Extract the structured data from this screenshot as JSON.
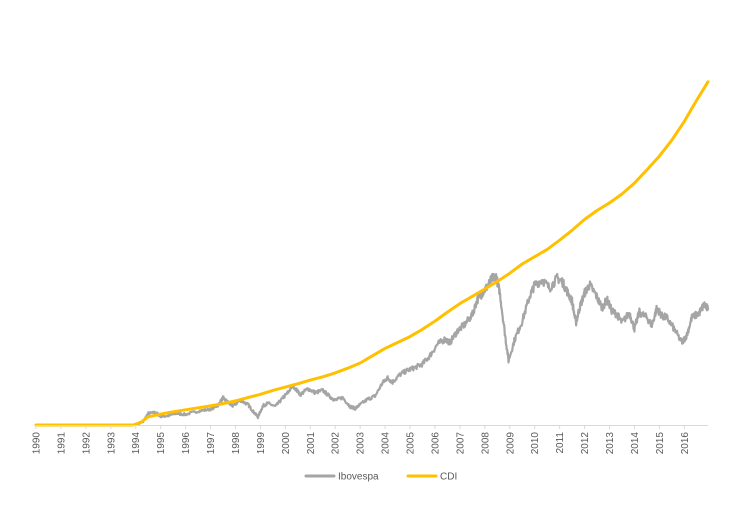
{
  "chart_data": {
    "type": "line",
    "title": "",
    "xlabel": "",
    "ylabel": "",
    "x_ticks": [
      "1990",
      "1991",
      "1992",
      "1993",
      "1994",
      "1995",
      "1996",
      "1997",
      "1998",
      "1999",
      "2000",
      "2001",
      "2002",
      "2003",
      "2004",
      "2005",
      "2006",
      "2007",
      "2008",
      "2009",
      "2010",
      "2011",
      "2012",
      "2013",
      "2014",
      "2015",
      "2016"
    ],
    "xlim": [
      1990.0,
      2016.95
    ],
    "ylim": [
      0,
      100
    ],
    "grid": false,
    "y_axis_visible": false,
    "legend": {
      "placement": "bottom-center"
    },
    "series": [
      {
        "name": "Ibovespa",
        "color": "#A5A5A5",
        "x": [
          1990.0,
          1993.9,
          1994.3,
          1994.5,
          1994.8,
          1995.0,
          1995.3,
          1995.6,
          1996.0,
          1996.5,
          1997.0,
          1997.3,
          1997.5,
          1997.75,
          1997.9,
          1998.2,
          1998.5,
          1998.7,
          1998.9,
          1999.1,
          1999.3,
          1999.6,
          1999.9,
          2000.1,
          2000.3,
          2000.6,
          2000.9,
          2001.2,
          2001.5,
          2001.8,
          2002.0,
          2002.3,
          2002.6,
          2002.8,
          2003.0,
          2003.3,
          2003.6,
          2003.9,
          2004.1,
          2004.3,
          2004.6,
          2004.9,
          2005.2,
          2005.5,
          2005.8,
          2006.1,
          2006.4,
          2006.6,
          2006.9,
          2007.2,
          2007.5,
          2007.7,
          2007.9,
          2008.1,
          2008.3,
          2008.45,
          2008.6,
          2008.8,
          2008.95,
          2009.2,
          2009.5,
          2009.8,
          2010.0,
          2010.3,
          2010.6,
          2010.9,
          2011.1,
          2011.3,
          2011.5,
          2011.65,
          2011.8,
          2012.0,
          2012.2,
          2012.45,
          2012.7,
          2012.9,
          2013.1,
          2013.3,
          2013.5,
          2013.8,
          2014.0,
          2014.2,
          2014.5,
          2014.7,
          2014.9,
          2015.1,
          2015.3,
          2015.6,
          2015.9,
          2016.1,
          2016.3,
          2016.6,
          2016.8,
          2016.95
        ],
        "values": [
          0,
          0,
          1.0,
          3.5,
          3.8,
          2.6,
          2.8,
          3.5,
          3.2,
          4.2,
          4.8,
          6.0,
          8.2,
          6.5,
          5.8,
          7.5,
          6.2,
          4.2,
          2.4,
          5.8,
          6.6,
          5.6,
          8.2,
          9.8,
          12.0,
          9.2,
          11.0,
          9.8,
          10.5,
          8.5,
          7.5,
          8.3,
          5.6,
          5.0,
          6.2,
          7.8,
          8.8,
          12.8,
          14.3,
          13.0,
          15.3,
          16.6,
          17.4,
          18.5,
          21.0,
          24.5,
          26.0,
          25.0,
          28.5,
          30.5,
          33.5,
          38.0,
          40.0,
          42.0,
          44.5,
          45.0,
          40.2,
          28.0,
          19.5,
          26.0,
          31.5,
          39.0,
          42.5,
          44.0,
          41.5,
          44.5,
          43.5,
          40.5,
          37.5,
          30.8,
          35.5,
          40.0,
          42.5,
          39.5,
          35.5,
          38.0,
          34.5,
          33.5,
          31.0,
          34.0,
          29.2,
          34.2,
          32.5,
          30.2,
          35.5,
          33.0,
          32.5,
          29.0,
          25.0,
          27.2,
          32.5,
          34.0,
          36.5,
          35.0
        ]
      },
      {
        "name": "CDI",
        "color": "#FFC000",
        "x": [
          1990.0,
          1993.9,
          1994.2,
          1994.5,
          1995.0,
          1995.5,
          1996.0,
          1996.5,
          1997.0,
          1997.5,
          1998.0,
          1998.5,
          1999.0,
          1999.5,
          2000.0,
          2000.5,
          2001.0,
          2001.5,
          2002.0,
          2002.5,
          2003.0,
          2003.5,
          2004.0,
          2004.5,
          2005.0,
          2005.5,
          2006.0,
          2006.5,
          2007.0,
          2007.5,
          2008.0,
          2008.5,
          2009.0,
          2009.5,
          2010.0,
          2010.5,
          2011.0,
          2011.5,
          2012.0,
          2012.5,
          2013.0,
          2013.5,
          2014.0,
          2014.5,
          2015.0,
          2015.5,
          2016.0,
          2016.5,
          2016.95
        ],
        "values": [
          0,
          0,
          0.8,
          2.5,
          3.3,
          4.0,
          4.6,
          5.2,
          5.8,
          6.5,
          7.3,
          8.3,
          9.3,
          10.5,
          11.5,
          12.5,
          13.6,
          14.6,
          15.8,
          17.2,
          18.8,
          21.0,
          23.2,
          25.0,
          26.8,
          29.0,
          31.5,
          34.2,
          36.8,
          39.0,
          41.2,
          43.5,
          46.0,
          48.8,
          51.0,
          53.2,
          56.0,
          59.0,
          62.3,
          65.0,
          67.3,
          70.0,
          73.3,
          77.3,
          81.5,
          86.3,
          92.0,
          98.5,
          104.0
        ]
      }
    ]
  }
}
